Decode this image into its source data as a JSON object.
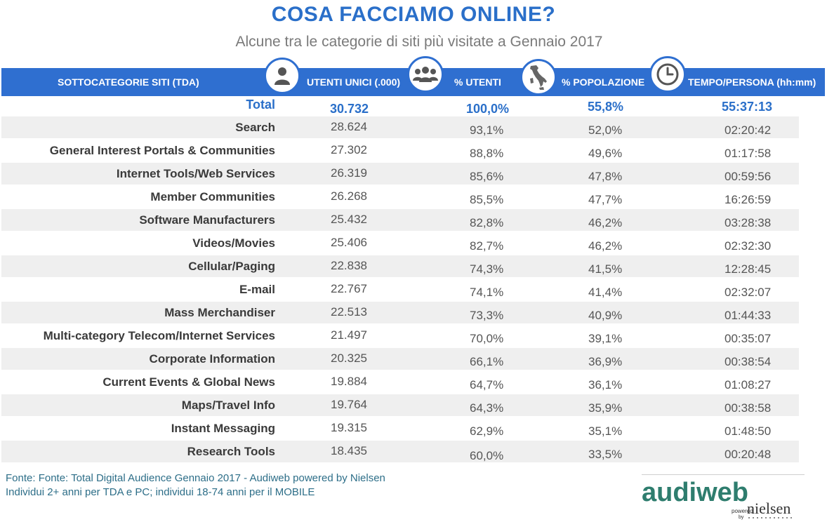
{
  "title": "COSA FACCIAMO ONLINE?",
  "subtitle": "Alcune tra le categorie di siti più visitate a Gennaio 2017",
  "header": {
    "col_category": "SOTTOCATEGORIE SITI  (TDA)",
    "col_users": "UTENTI UNICI (.000)",
    "col_pct_users": "% UTENTI",
    "col_pct_pop": "% POPOLAZIONE",
    "col_time": "TEMPO/PERSONA (hh:mm)",
    "icons": [
      "person-icon",
      "group-icon",
      "italy-map-icon",
      "clock-icon"
    ]
  },
  "total": {
    "label": "Total",
    "users": "30.732",
    "pct_users": "100,0%",
    "pct_pop": "55,8%",
    "time": "55:37:13"
  },
  "rows": [
    {
      "name": "Search",
      "users": "28.624",
      "pct_users": "93,1%",
      "pct_pop": "52,0%",
      "time": "02:20:42"
    },
    {
      "name": "General Interest Portals & Communities",
      "users": "27.302",
      "pct_users": "88,8%",
      "pct_pop": "49,6%",
      "time": "01:17:58"
    },
    {
      "name": "Internet Tools/Web Services",
      "users": "26.319",
      "pct_users": "85,6%",
      "pct_pop": "47,8%",
      "time": "00:59:56"
    },
    {
      "name": "Member Communities",
      "users": "26.268",
      "pct_users": "85,5%",
      "pct_pop": "47,7%",
      "time": "16:26:59"
    },
    {
      "name": "Software Manufacturers",
      "users": "25.432",
      "pct_users": "82,8%",
      "pct_pop": "46,2%",
      "time": "03:28:38"
    },
    {
      "name": "Videos/Movies",
      "users": "25.406",
      "pct_users": "82,7%",
      "pct_pop": "46,2%",
      "time": "02:32:30"
    },
    {
      "name": "Cellular/Paging",
      "users": "22.838",
      "pct_users": "74,3%",
      "pct_pop": "41,5%",
      "time": "12:28:45"
    },
    {
      "name": "E-mail",
      "users": "22.767",
      "pct_users": "74,1%",
      "pct_pop": "41,4%",
      "time": "02:32:07"
    },
    {
      "name": "Mass Merchandiser",
      "users": "22.513",
      "pct_users": "73,3%",
      "pct_pop": "40,9%",
      "time": "01:44:33"
    },
    {
      "name": "Multi-category Telecom/Internet Services",
      "users": "21.497",
      "pct_users": "70,0%",
      "pct_pop": "39,1%",
      "time": "00:35:07"
    },
    {
      "name": "Corporate Information",
      "users": "20.325",
      "pct_users": "66,1%",
      "pct_pop": "36,9%",
      "time": "00:38:54"
    },
    {
      "name": "Current Events & Global News",
      "users": "19.884",
      "pct_users": "64,7%",
      "pct_pop": "36,1%",
      "time": "01:08:27"
    },
    {
      "name": "Maps/Travel Info",
      "users": "19.764",
      "pct_users": "64,3%",
      "pct_pop": "35,9%",
      "time": "00:38:58"
    },
    {
      "name": "Instant Messaging",
      "users": "19.315",
      "pct_users": "62,9%",
      "pct_pop": "35,1%",
      "time": "01:48:50"
    },
    {
      "name": "Research Tools",
      "users": "18.435",
      "pct_users": "60,0%",
      "pct_pop": "33,5%",
      "time": "00:20:48"
    }
  ],
  "footer": {
    "source": "Fonte: Fonte: Total Digital Audience Gennaio 2017 - Audiweb powered by Nielsen",
    "note": "Individui 2+ anni per TDA e PC; individui 18-74 anni per il MOBILE"
  },
  "logo": {
    "brand": "audiweb",
    "powered": "powered",
    "by": "by",
    "partner": "nielsen"
  },
  "colors": {
    "accent": "#2f6fd0",
    "title": "#2a6fc9",
    "band": "#efefef",
    "logo_green": "#2e7d6e"
  }
}
